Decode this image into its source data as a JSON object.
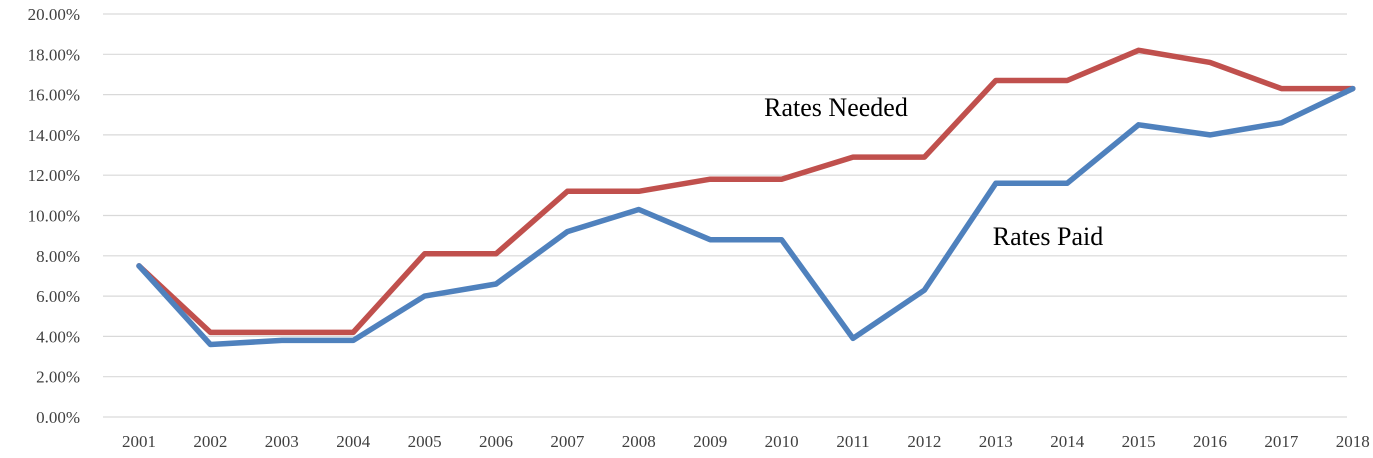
{
  "chart_data": {
    "type": "line",
    "x": [
      "2001",
      "2002",
      "2003",
      "2004",
      "2005",
      "2006",
      "2007",
      "2008",
      "2009",
      "2010",
      "2011",
      "2012",
      "2013",
      "2014",
      "2015",
      "2016",
      "2017",
      "2018"
    ],
    "ylim": [
      0,
      20
    ],
    "y_ticks": [
      "0.00%",
      "2.00%",
      "4.00%",
      "6.00%",
      "8.00%",
      "10.00%",
      "12.00%",
      "14.00%",
      "16.00%",
      "18.00%",
      "20.00%"
    ],
    "grid": true,
    "legend": "none",
    "series": [
      {
        "name": "Rates Needed",
        "color": "#c0504d",
        "values": [
          7.5,
          4.2,
          4.2,
          4.2,
          8.1,
          8.1,
          11.2,
          11.2,
          11.8,
          11.8,
          12.9,
          12.9,
          16.7,
          16.7,
          18.2,
          17.6,
          16.3,
          16.3
        ]
      },
      {
        "name": "Rates Paid",
        "color": "#4f81bd",
        "values": [
          7.5,
          3.6,
          3.8,
          3.8,
          6.0,
          6.6,
          9.2,
          10.3,
          8.8,
          8.8,
          3.9,
          6.3,
          11.6,
          11.6,
          14.5,
          14.0,
          14.6,
          16.3
        ]
      }
    ],
    "annotations": [
      {
        "text": "Rates Needed",
        "series": "Rates Needed"
      },
      {
        "text": "Rates Paid",
        "series": "Rates Paid"
      }
    ]
  }
}
